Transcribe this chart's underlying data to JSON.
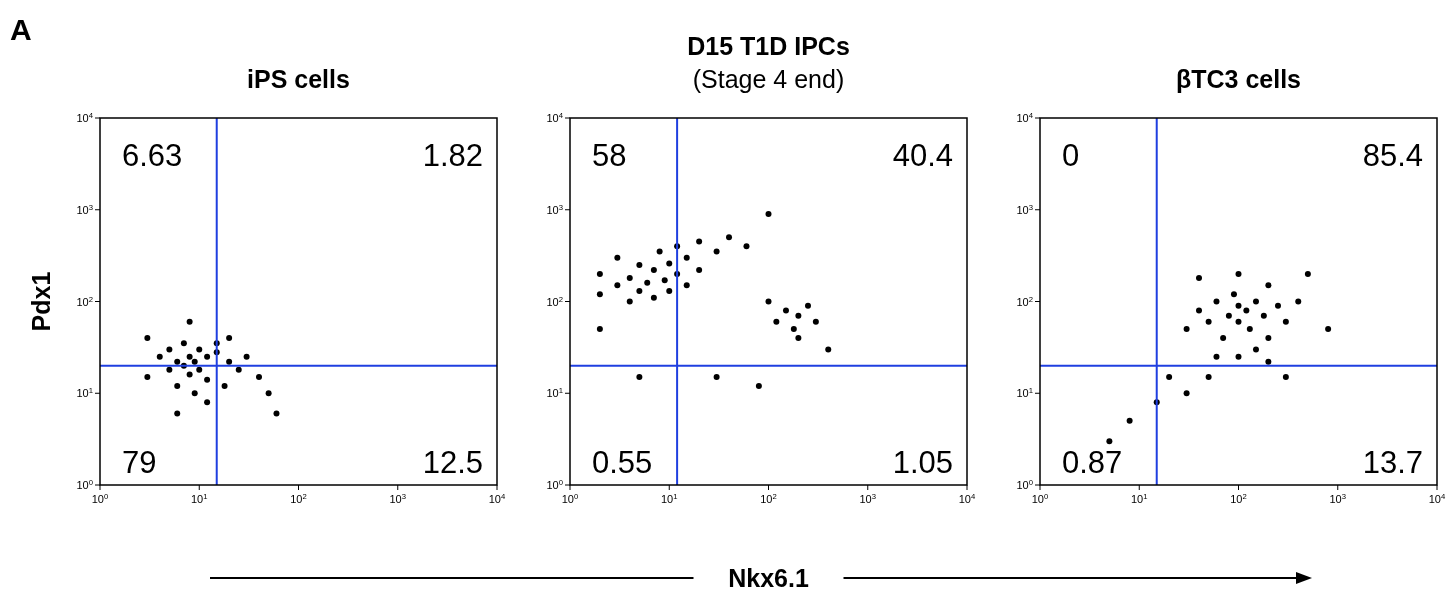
{
  "chart_data": [
    {
      "type": "scatter",
      "title": "iPS cells",
      "ylabel": "Pdx1",
      "log": "xy",
      "xlim": [
        1,
        10000
      ],
      "ylim": [
        1,
        10000
      ],
      "marker": "circle",
      "grid": false,
      "xticks": [
        {
          "value": 1,
          "label": "10$^{0}$"
        },
        {
          "value": 10,
          "label": "10$^{1}$"
        },
        {
          "value": 100,
          "label": "10$^{2}$"
        },
        {
          "value": 1000,
          "label": "10$^{3}$"
        },
        {
          "value": 10000,
          "label": "10$^{4}$"
        }
      ],
      "yticks": [
        {
          "value": 1,
          "label": "10$^{0}$"
        },
        {
          "value": 10,
          "label": "10$^{1}$"
        },
        {
          "value": 100,
          "label": "10$^{2}$"
        },
        {
          "value": 1000,
          "label": "10$^{3}$"
        },
        {
          "value": 10000,
          "label": "10$^{4}$"
        }
      ],
      "ref_lines": [
        {
          "axis": "x",
          "value": 15,
          "color": "#1f3fe0"
        },
        {
          "axis": "y",
          "value": 20,
          "color": "#1f3fe0"
        }
      ],
      "annotations": [
        "A",
        "6.63",
        "1.82",
        "79",
        "12.5"
      ],
      "series": [
        {
          "color": "#000000",
          "x": [
            3,
            4,
            5,
            5,
            6,
            6,
            7,
            7,
            8,
            8,
            9,
            9,
            10,
            10,
            12,
            12,
            15,
            15,
            18,
            20,
            25,
            30,
            40,
            50,
            3,
            8,
            6,
            12,
            20,
            60
          ],
          "values": [
            15,
            25,
            18,
            30,
            12,
            22,
            20,
            35,
            16,
            25,
            10,
            22,
            18,
            30,
            14,
            25,
            28,
            35,
            12,
            22,
            18,
            25,
            15,
            10,
            40,
            60,
            6,
            8,
            40,
            6
          ]
        }
      ]
    },
    {
      "type": "scatter",
      "title": "D15 T1D IPCs",
      "subtitle": "(Stage 4 end)",
      "xlabel": "Nkx6.1",
      "log": "xy",
      "xlim": [
        1,
        10000
      ],
      "ylim": [
        1,
        10000
      ],
      "marker": "circle",
      "grid": false,
      "xticks": [
        {
          "value": 1,
          "label": "10$^{0}$"
        },
        {
          "value": 10,
          "label": "10$^{1}$"
        },
        {
          "value": 100,
          "label": "10$^{2}$"
        },
        {
          "value": 1000,
          "label": "10$^{3}$"
        },
        {
          "value": 10000,
          "label": "10$^{4}$"
        }
      ],
      "yticks": [
        {
          "value": 1,
          "label": "10$^{0}$"
        },
        {
          "value": 10,
          "label": "10$^{1}$"
        },
        {
          "value": 100,
          "label": "10$^{2}$"
        },
        {
          "value": 1000,
          "label": "10$^{3}$"
        },
        {
          "value": 10000,
          "label": "10$^{4}$"
        }
      ],
      "ref_lines": [
        {
          "axis": "x",
          "value": 12,
          "color": "#1f3fe0"
        },
        {
          "axis": "y",
          "value": 20,
          "color": "#1f3fe0"
        }
      ],
      "annotations": [
        "58",
        "40.4",
        "0.55",
        "1.05"
      ],
      "series": [
        {
          "color": "#000000",
          "x": [
            2,
            2,
            3,
            3,
            4,
            4,
            5,
            5,
            6,
            7,
            7,
            8,
            9,
            10,
            10,
            12,
            12,
            15,
            15,
            20,
            20,
            30,
            40,
            60,
            100,
            150,
            120,
            200,
            250,
            180,
            300,
            100,
            200,
            5,
            30,
            80,
            400,
            2
          ],
          "values": [
            120,
            200,
            150,
            300,
            100,
            180,
            250,
            130,
            160,
            220,
            110,
            350,
            170,
            260,
            130,
            400,
            200,
            300,
            150,
            450,
            220,
            350,
            500,
            400,
            900,
            80,
            60,
            70,
            90,
            50,
            60,
            100,
            40,
            15,
            15,
            12,
            30,
            50
          ]
        }
      ]
    },
    {
      "type": "scatter",
      "title": "βTC3 cells",
      "log": "xy",
      "xlim": [
        1,
        10000
      ],
      "ylim": [
        1,
        10000
      ],
      "marker": "circle",
      "grid": false,
      "xticks": [
        {
          "value": 1,
          "label": "10$^{0}$"
        },
        {
          "value": 10,
          "label": "10$^{1}$"
        },
        {
          "value": 100,
          "label": "10$^{2}$"
        },
        {
          "value": 1000,
          "label": "10$^{3}$"
        },
        {
          "value": 10000,
          "label": "10$^{4}$"
        }
      ],
      "yticks": [
        {
          "value": 1,
          "label": "10$^{0}$"
        },
        {
          "value": 10,
          "label": "10$^{1}$"
        },
        {
          "value": 100,
          "label": "10$^{2}$"
        },
        {
          "value": 1000,
          "label": "10$^{3}$"
        },
        {
          "value": 10000,
          "label": "10$^{4}$"
        }
      ],
      "ref_lines": [
        {
          "axis": "x",
          "value": 15,
          "color": "#1f3fe0"
        },
        {
          "axis": "y",
          "value": 20,
          "color": "#1f3fe0"
        }
      ],
      "annotations": [
        "0",
        "85.4",
        "0.87",
        "13.7"
      ],
      "series": [
        {
          "color": "#000000",
          "x": [
            30,
            40,
            50,
            60,
            70,
            80,
            90,
            100,
            100,
            120,
            130,
            150,
            150,
            180,
            200,
            200,
            250,
            300,
            400,
            500,
            60,
            100,
            200,
            50,
            30,
            15,
            8,
            5,
            20,
            300,
            800,
            40,
            100
          ],
          "values": [
            50,
            80,
            60,
            100,
            40,
            70,
            120,
            60,
            90,
            80,
            50,
            100,
            30,
            70,
            150,
            40,
            90,
            60,
            100,
            200,
            25,
            25,
            22,
            15,
            10,
            8,
            5,
            3,
            15,
            15,
            50,
            180,
            200
          ]
        }
      ]
    }
  ]
}
